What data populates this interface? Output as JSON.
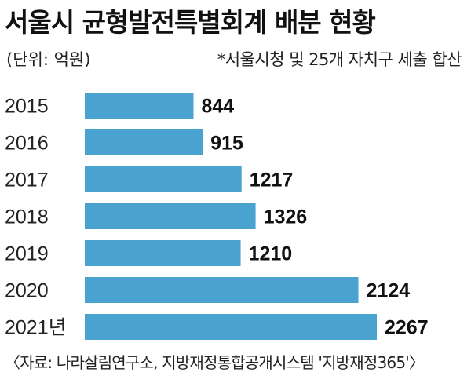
{
  "header": {
    "title": "서울시 균형발전특별회계 배분 현황",
    "unit": "(단위: 억원)",
    "note": "*서울시청 및 25개 자치구 세출 합산"
  },
  "footer": {
    "source": "〈자료: 나라살림연구소, 지방재정통합공개시스템 '지방재정365'〉"
  },
  "colors": {
    "bar": "#4aa3cf"
  },
  "chart_data": {
    "type": "bar",
    "orientation": "horizontal",
    "categories": [
      "2015",
      "2016",
      "2017",
      "2018",
      "2019",
      "2020",
      "2021년"
    ],
    "values": [
      844,
      915,
      1217,
      1326,
      1210,
      2124,
      2267
    ],
    "title": "서울시 균형발전특별회계 배분 현황",
    "unit": "억원",
    "xlim": [
      0,
      2267
    ],
    "grid": false,
    "legend": "none"
  }
}
